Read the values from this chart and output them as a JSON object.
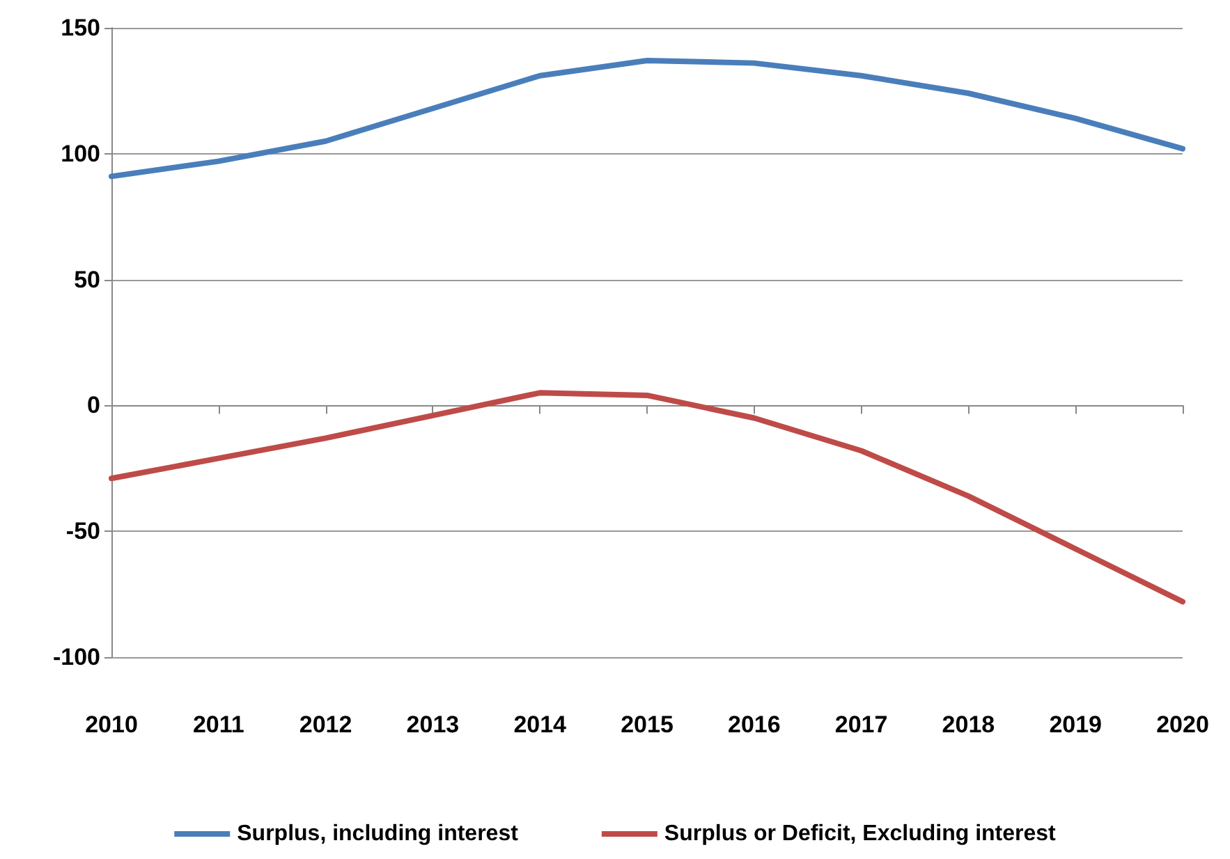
{
  "chart_data": {
    "type": "line",
    "categories": [
      "2010",
      "2011",
      "2012",
      "2013",
      "2014",
      "2015",
      "2016",
      "2017",
      "2018",
      "2019",
      "2020"
    ],
    "series": [
      {
        "name": "Surplus, including interest",
        "color": "#4a7ebb",
        "values": [
          91,
          97,
          105,
          118,
          131,
          137,
          136,
          131,
          124,
          114,
          102
        ]
      },
      {
        "name": "Surplus or Deficit, Excluding interest",
        "color": "#be4b48",
        "values": [
          -29,
          -21,
          -13,
          -4,
          5,
          4,
          -5,
          -18,
          -36,
          -57,
          -78
        ]
      }
    ],
    "ylim": [
      -100,
      150
    ],
    "yticks": [
      -100,
      -50,
      0,
      50,
      100,
      150
    ],
    "grid": "y",
    "legend": "bottom",
    "marker": "none",
    "line_style": "solid"
  }
}
